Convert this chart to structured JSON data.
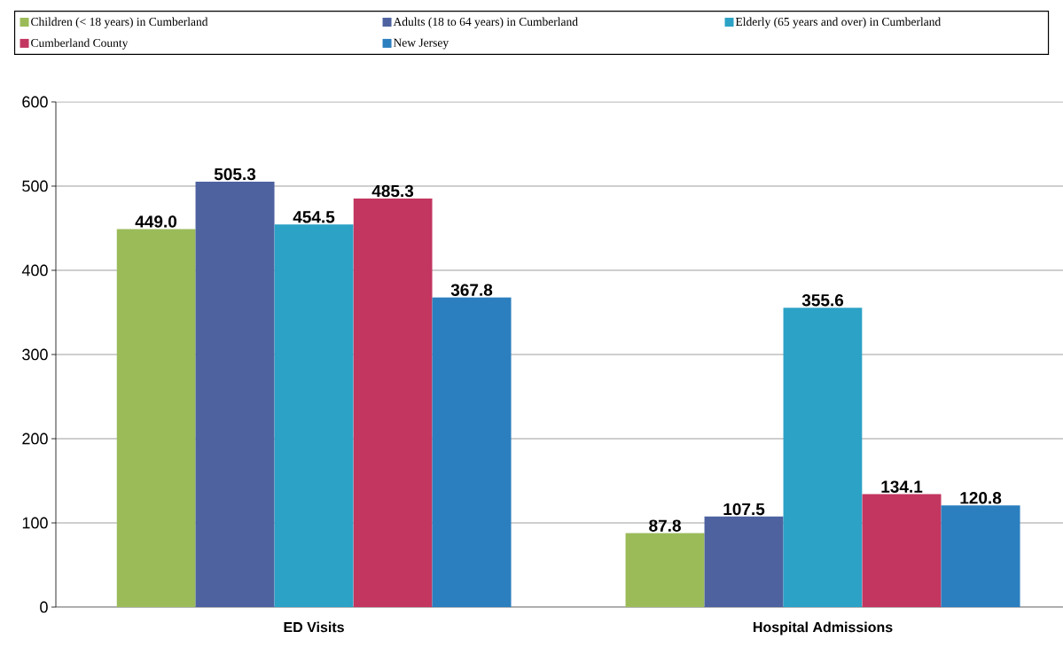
{
  "chart_data": {
    "type": "bar",
    "categories": [
      "ED Visits",
      "Hospital Admissions"
    ],
    "series": [
      {
        "name": "Children (< 18 years) in Cumberland",
        "color": "#9bbb59",
        "values": [
          449.0,
          87.8
        ],
        "value_labels": [
          "449.0",
          "87.8"
        ]
      },
      {
        "name": "Adults (18 to 64 years) in Cumberland",
        "color": "#4e62a0",
        "values": [
          505.3,
          107.5
        ],
        "value_labels": [
          "505.3",
          "107.5"
        ]
      },
      {
        "name": "Elderly (65 years and over) in Cumberland",
        "color": "#2ca2c6",
        "values": [
          454.5,
          355.6
        ],
        "value_labels": [
          "454.5",
          "355.6"
        ]
      },
      {
        "name": "Cumberland County",
        "color": "#c23660",
        "values": [
          485.3,
          134.1
        ],
        "value_labels": [
          "485.3",
          "134.1"
        ]
      },
      {
        "name": "New Jersey",
        "color": "#2b7fbf",
        "values": [
          367.8,
          120.8
        ],
        "value_labels": [
          "367.8",
          "120.8"
        ]
      }
    ],
    "ylim": [
      0,
      600
    ],
    "yticks": [
      0,
      100,
      200,
      300,
      400,
      500,
      600
    ],
    "grid": "y",
    "legend": "top"
  }
}
